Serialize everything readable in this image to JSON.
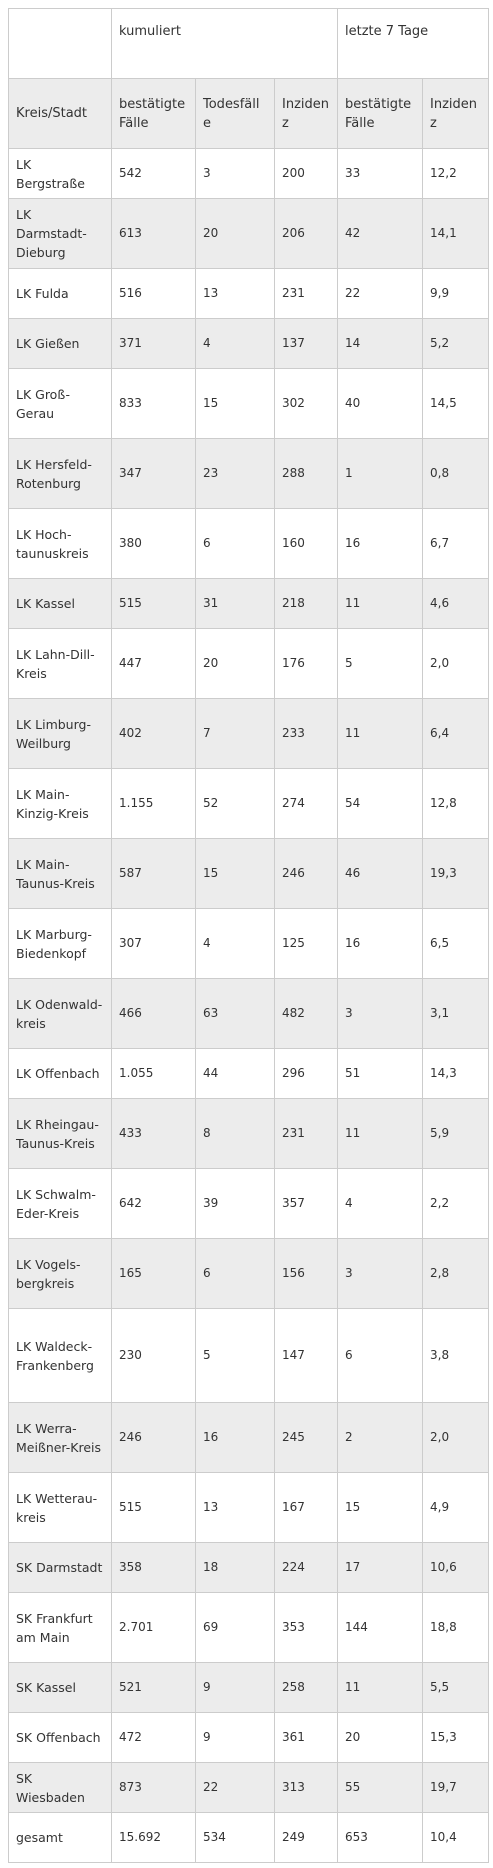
{
  "table": {
    "group_headers": {
      "blank": "",
      "cumulative": "kumuliert",
      "last7": "letzte 7 Tage"
    },
    "column_headers": {
      "district": "Kreis/Stadt",
      "confirmed": "bestätigte Fälle",
      "deaths": "Todesfälle",
      "incidence": "Inzidenz",
      "confirmed7": "bestätigte Fälle",
      "incidence7": "Inzidenz"
    },
    "rows": [
      {
        "name": "LK Bergstraße",
        "confirmed": "542",
        "deaths": "3",
        "incidence": "200",
        "confirmed7": "33",
        "incidence7": "12,2"
      },
      {
        "name": "LK Darmstadt-Dieburg",
        "confirmed": "613",
        "deaths": "20",
        "incidence": "206",
        "confirmed7": "42",
        "incidence7": "14,1"
      },
      {
        "name": "LK Fulda",
        "confirmed": "516",
        "deaths": "13",
        "incidence": "231",
        "confirmed7": "22",
        "incidence7": "9,9"
      },
      {
        "name": "LK Gießen",
        "confirmed": "371",
        "deaths": "4",
        "incidence": "137",
        "confirmed7": "14",
        "incidence7": "5,2"
      },
      {
        "name": "LK Groß-Gerau",
        "confirmed": "833",
        "deaths": "15",
        "incidence": "302",
        "confirmed7": "40",
        "incidence7": "14,5"
      },
      {
        "name": "LK Hersfeld-Rotenburg",
        "confirmed": "347",
        "deaths": "23",
        "incidence": "288",
        "confirmed7": "1",
        "incidence7": "0,8"
      },
      {
        "name": "LK Hoch-taunuskreis",
        "confirmed": "380",
        "deaths": "6",
        "incidence": "160",
        "confirmed7": "16",
        "incidence7": "6,7"
      },
      {
        "name": "LK Kassel",
        "confirmed": "515",
        "deaths": "31",
        "incidence": "218",
        "confirmed7": "11",
        "incidence7": "4,6"
      },
      {
        "name": "LK Lahn-Dill-Kreis",
        "confirmed": "447",
        "deaths": "20",
        "incidence": "176",
        "confirmed7": "5",
        "incidence7": "2,0"
      },
      {
        "name": "LK Limburg-Weilburg",
        "confirmed": "402",
        "deaths": "7",
        "incidence": "233",
        "confirmed7": "11",
        "incidence7": "6,4"
      },
      {
        "name": "LK Main-Kinzig-Kreis",
        "confirmed": "1.155",
        "deaths": "52",
        "incidence": "274",
        "confirmed7": "54",
        "incidence7": "12,8"
      },
      {
        "name": "LK Main-Taunus-Kreis",
        "confirmed": "587",
        "deaths": "15",
        "incidence": "246",
        "confirmed7": "46",
        "incidence7": "19,3"
      },
      {
        "name": "LK Marburg-Biedenkopf",
        "confirmed": "307",
        "deaths": "4",
        "incidence": "125",
        "confirmed7": "16",
        "incidence7": "6,5"
      },
      {
        "name": "LK Odenwald-kreis",
        "confirmed": "466",
        "deaths": "63",
        "incidence": "482",
        "confirmed7": "3",
        "incidence7": "3,1"
      },
      {
        "name": "LK Offenbach",
        "confirmed": "1.055",
        "deaths": "44",
        "incidence": "296",
        "confirmed7": "51",
        "incidence7": "14,3"
      },
      {
        "name": "LK Rheingau-Taunus-Kreis",
        "confirmed": "433",
        "deaths": "8",
        "incidence": "231",
        "confirmed7": "11",
        "incidence7": "5,9"
      },
      {
        "name": "LK Schwalm-Eder-Kreis",
        "confirmed": "642",
        "deaths": "39",
        "incidence": "357",
        "confirmed7": "4",
        "incidence7": "2,2"
      },
      {
        "name": "LK Vogels-bergkreis",
        "confirmed": "165",
        "deaths": "6",
        "incidence": "156",
        "confirmed7": "3",
        "incidence7": "2,8"
      },
      {
        "name": "LK Waldeck-Frankenberg",
        "confirmed": "230",
        "deaths": "5",
        "incidence": "147",
        "confirmed7": "6",
        "incidence7": "3,8"
      },
      {
        "name": "LK Werra-Meißner-Kreis",
        "confirmed": "246",
        "deaths": "16",
        "incidence": "245",
        "confirmed7": "2",
        "incidence7": "2,0"
      },
      {
        "name": "LK Wetterau-kreis",
        "confirmed": "515",
        "deaths": "13",
        "incidence": "167",
        "confirmed7": "15",
        "incidence7": "4,9"
      },
      {
        "name": "SK Darmstadt",
        "confirmed": "358",
        "deaths": "18",
        "incidence": "224",
        "confirmed7": "17",
        "incidence7": "10,6"
      },
      {
        "name": "SK Frankfurt am Main",
        "confirmed": "2.701",
        "deaths": "69",
        "incidence": "353",
        "confirmed7": "144",
        "incidence7": "18,8"
      },
      {
        "name": "SK Kassel",
        "confirmed": "521",
        "deaths": "9",
        "incidence": "258",
        "confirmed7": "11",
        "incidence7": "5,5"
      },
      {
        "name": "SK Offenbach",
        "confirmed": "472",
        "deaths": "9",
        "incidence": "361",
        "confirmed7": "20",
        "incidence7": "15,3"
      },
      {
        "name": "SK Wiesbaden",
        "confirmed": "873",
        "deaths": "22",
        "incidence": "313",
        "confirmed7": "55",
        "incidence7": "19,7"
      },
      {
        "name": "gesamt",
        "confirmed": "15.692",
        "deaths": "534",
        "incidence": "249",
        "confirmed7": "653",
        "incidence7": "10,4"
      }
    ]
  }
}
